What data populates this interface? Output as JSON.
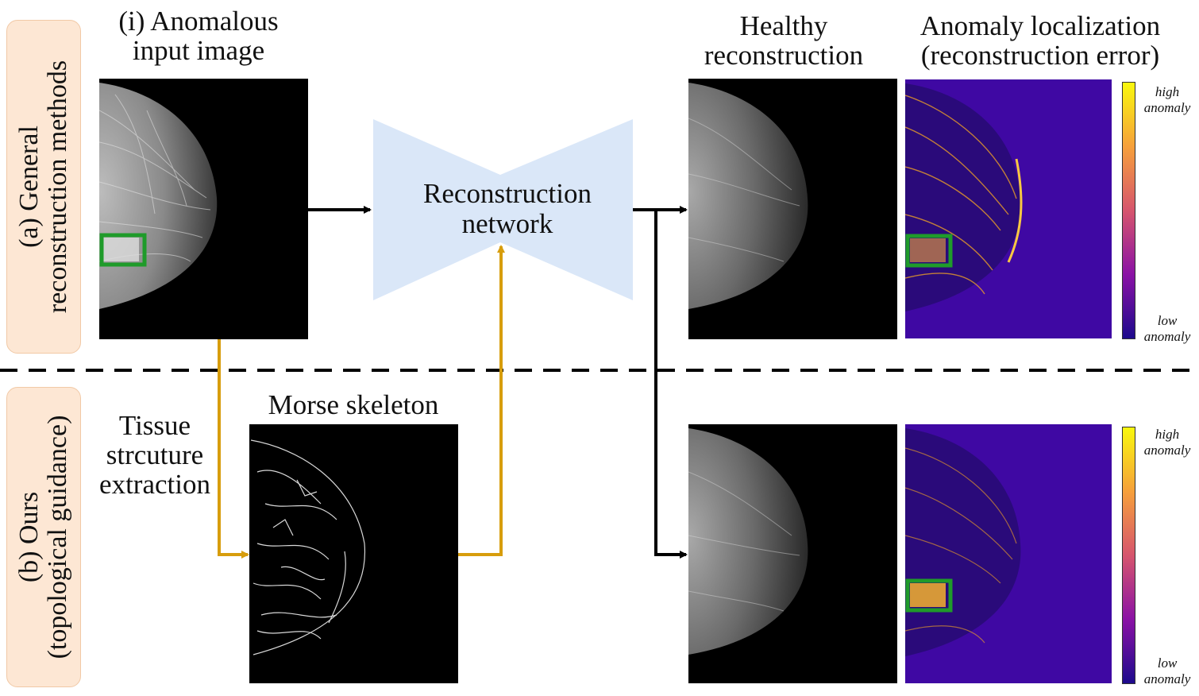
{
  "rows": {
    "general": {
      "label_line1": "(a) General",
      "label_line2": "reconstruction methods"
    },
    "ours": {
      "label_line1": "(b) Ours",
      "label_line2": "(topological guidance)"
    }
  },
  "input": {
    "title_line1": "(i) Anomalous",
    "title_line2": "input image"
  },
  "network": {
    "label_line1": "Reconstruction",
    "label_line2": "network"
  },
  "extraction": {
    "line1": "Tissue",
    "line2": "strcuture",
    "line3": "extraction"
  },
  "skeleton": {
    "title": "Morse skeleton"
  },
  "reconstruction": {
    "title_line1": "Healthy",
    "title_line2": "reconstruction"
  },
  "localization": {
    "title_line1": "Anomaly localization",
    "title_line2": "(reconstruction error)"
  },
  "colorbar": {
    "high_line1": "high",
    "high_line2": "anomaly",
    "low_line1": "low",
    "low_line2": "anomaly"
  },
  "colors": {
    "panel": "#fde7d4",
    "network": "#dae7f8",
    "skeleton_arrow": "#d79d0c",
    "main_arrow": "#000000",
    "anomaly_box": "#1f9b2a",
    "heatmap_bg": "#3f08a3"
  }
}
